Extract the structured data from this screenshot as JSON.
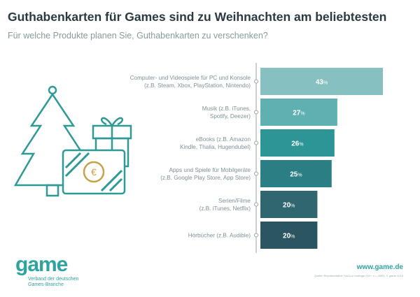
{
  "title": "Guthabenkarten für Games sind zu Weihnachten am beliebtesten",
  "subtitle": "Für welche Produkte planen Sie, Guthabenkarten zu verschenken?",
  "chart_data": {
    "type": "bar",
    "orientation": "horizontal",
    "categories": [
      [
        "Computer- und Videospiele für PC und Konsole",
        "(z.B. Steam, Xbox, PlayStation, Nintendo)"
      ],
      [
        "Musik (z.B. iTunes,",
        "Spotify, Deezer)"
      ],
      [
        "eBooks (z.B. Amazon",
        "Kindle, Thalia, Hugendubel)"
      ],
      [
        "Apps und Spiele für Mobilgeräte",
        "(z.B. Google Play Store, App Store)"
      ],
      [
        "Serien/Filme",
        "(z.B. iTunes, Netflix)"
      ],
      [
        "Hörbücher (z.B. Audible)"
      ]
    ],
    "values": [
      43,
      27,
      26,
      25,
      20,
      20
    ],
    "value_suffix": "%",
    "colors": [
      "#86c0c0",
      "#5fb0b0",
      "#2d9595",
      "#2b7e84",
      "#2f6670",
      "#2b5561"
    ],
    "xlim": [
      0,
      43
    ],
    "grid": false
  },
  "footer": {
    "logo": "game",
    "logo_sub": [
      "Verband der deutschen",
      "Games-Branche"
    ],
    "url": "www.game.de",
    "source": "Quelle: Repräsentative YouGov-Umfrage (16+, n = 2055), © game 2019"
  },
  "illustration": {
    "currency_symbol": "€"
  },
  "accent": "#2ea39f"
}
